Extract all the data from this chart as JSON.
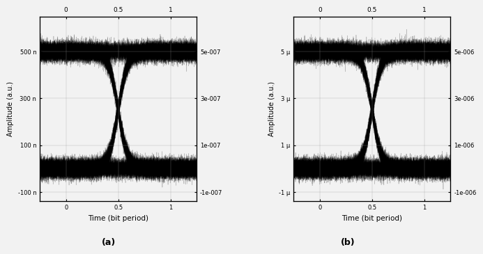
{
  "fig_width": 6.85,
  "fig_height": 3.69,
  "dpi": 100,
  "bg_color": "#f2f2f2",
  "line_color": "black",
  "line_alpha": 0.22,
  "line_width": 0.5,
  "n_traces": 150,
  "plot_a": {
    "xlabel": "Time (bit period)",
    "ylabel": "Amplitude (a.u.)",
    "label": "(a)",
    "seed": 0,
    "xlim": [
      -0.25,
      1.25
    ],
    "ylim": [
      -1.4e-07,
      6.5e-07
    ],
    "amp_high": 5e-07,
    "amp_low": 0.0,
    "noise_sigma": 1.8e-08,
    "trans_bw": 0.45,
    "yticks": [
      -1e-07,
      1e-07,
      3e-07,
      5e-07
    ],
    "yticklabels_left": [
      "-100 n",
      "100 n",
      "300 n",
      "500 n"
    ],
    "yticklabels_right": [
      "-1e-007",
      "1e-007",
      "3e-007",
      "5e-007"
    ],
    "xticks": [
      0,
      0.5,
      1
    ]
  },
  "plot_b": {
    "xlabel": "Time (bit period)",
    "ylabel": "Amplitude (a.u.)",
    "label": "(b)",
    "seed": 7,
    "xlim": [
      -0.25,
      1.25
    ],
    "ylim": [
      -1.4e-06,
      6.5e-06
    ],
    "amp_high": 5e-06,
    "amp_low": 0.0,
    "noise_sigma": 1.8e-07,
    "trans_bw": 0.45,
    "yticks": [
      -1e-06,
      1e-06,
      3e-06,
      5e-06
    ],
    "yticklabels_left": [
      "-1 μ",
      "1 μ",
      "3 μ",
      "5 μ"
    ],
    "yticklabels_right": [
      "-1e-006",
      "1e-006",
      "3e-006",
      "5e-006"
    ],
    "xticks": [
      0,
      0.5,
      1
    ]
  }
}
